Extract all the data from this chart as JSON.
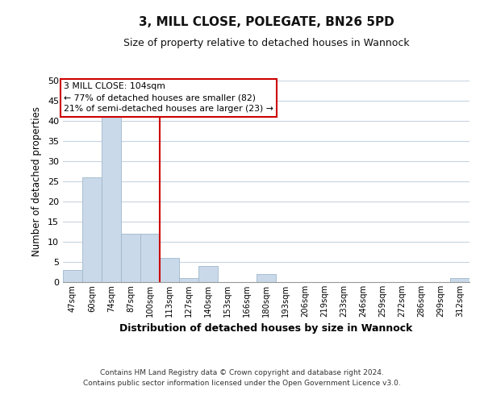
{
  "title": "3, MILL CLOSE, POLEGATE, BN26 5PD",
  "subtitle": "Size of property relative to detached houses in Wannock",
  "xlabel": "Distribution of detached houses by size in Wannock",
  "ylabel": "Number of detached properties",
  "bar_labels": [
    "47sqm",
    "60sqm",
    "74sqm",
    "87sqm",
    "100sqm",
    "113sqm",
    "127sqm",
    "140sqm",
    "153sqm",
    "166sqm",
    "180sqm",
    "193sqm",
    "206sqm",
    "219sqm",
    "233sqm",
    "246sqm",
    "259sqm",
    "272sqm",
    "286sqm",
    "299sqm",
    "312sqm"
  ],
  "bar_values": [
    3,
    26,
    41,
    12,
    12,
    6,
    1,
    4,
    0,
    0,
    2,
    0,
    0,
    0,
    0,
    0,
    0,
    0,
    0,
    0,
    1
  ],
  "bar_color": "#c9d9e9",
  "bar_edge_color": "#a0b8cc",
  "ylim": [
    0,
    50
  ],
  "yticks": [
    0,
    5,
    10,
    15,
    20,
    25,
    30,
    35,
    40,
    45,
    50
  ],
  "vline_x": 4.5,
  "vline_color": "#cc0000",
  "annotation_title": "3 MILL CLOSE: 104sqm",
  "annotation_line1": "← 77% of detached houses are smaller (82)",
  "annotation_line2": "21% of semi-detached houses are larger (23) →",
  "footer_line1": "Contains HM Land Registry data © Crown copyright and database right 2024.",
  "footer_line2": "Contains public sector information licensed under the Open Government Licence v3.0.",
  "background_color": "#ffffff",
  "grid_color": "#c8d4e0"
}
